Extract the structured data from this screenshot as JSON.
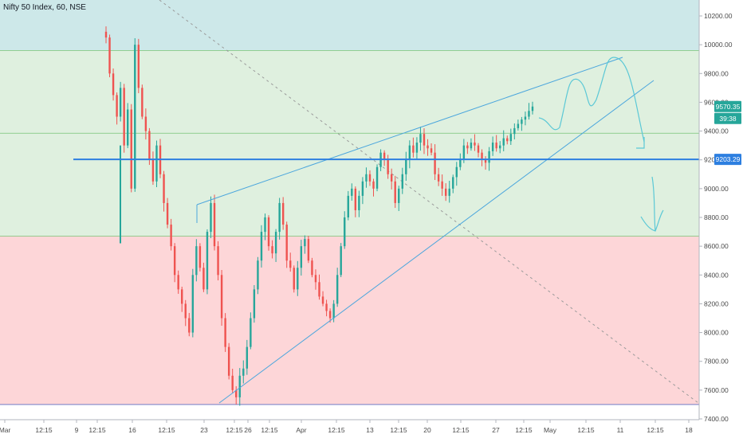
{
  "header": {
    "title": "Nifty 50 Index, 60, NSE"
  },
  "price_tags": {
    "last": "9570.35",
    "countdown": "39:38",
    "level": "9203.29"
  },
  "colors": {
    "zone_top": "#cde8e9",
    "zone_mid": "#dff0df",
    "zone_bottom": "#fdd6d8",
    "candle_up": "#26a69a",
    "candle_down": "#ef5350",
    "trend_line": "#4ba6dd",
    "level_line": "#2d7fe0",
    "target_line": "#2d7fe0",
    "dashed_line": "#9a9a9a",
    "last_tag": "#26a69a"
  },
  "chart_data": {
    "type": "candlestick",
    "yaxis": {
      "ylim": [
        7380,
        10320
      ],
      "ticks": [
        "7400.00",
        "7600.00",
        "7800.00",
        "8000.00",
        "8200.00",
        "8400.00",
        "8600.00",
        "8800.00",
        "9000.00",
        "9200.00",
        "9400.00",
        "9600.00",
        "9800.00",
        "10000.00",
        "10200.00"
      ]
    },
    "xaxis": {
      "ticks": [
        "Mar",
        "12:15",
        "9",
        "12:15",
        "16",
        "12:15",
        "23",
        "12:15",
        "26",
        "12:15",
        "Apr",
        "12:15",
        "13",
        "12:15",
        "20",
        "12:15",
        "27",
        "12:15",
        "May",
        "12:15",
        "11",
        "12:15",
        "18"
      ]
    },
    "zones": [
      {
        "name": "upper",
        "from": 9960,
        "to": 10320,
        "color": "#cde8e9"
      },
      {
        "name": "middle",
        "from": 8670,
        "to": 9960,
        "color": "#dff0df"
      },
      {
        "name": "lower",
        "from": 7500,
        "to": 8670,
        "color": "#fdd6d8"
      }
    ],
    "horizontal_levels": [
      9960,
      9385,
      8670,
      9203.29
    ],
    "support_price": 7500,
    "last_price": 9570.35,
    "close_path": [
      10050,
      9800,
      9650,
      9500,
      9700,
      9300,
      9550,
      9000,
      10000,
      9700,
      9500,
      9400,
      9200,
      9050,
      9300,
      9100,
      8900,
      8750,
      8600,
      8400,
      8300,
      8200,
      8100,
      8000,
      8400,
      8600,
      8450,
      8300,
      8700,
      8900,
      8600,
      8400,
      8100,
      7900,
      7700,
      7600,
      7550,
      7700,
      7750,
      7900,
      8100,
      8300,
      8500,
      8700,
      8800,
      8600,
      8550,
      8700,
      8900,
      8750,
      8500,
      8450,
      8300,
      8450,
      8600,
      8650,
      8500,
      8400,
      8350,
      8250,
      8200,
      8150,
      8100,
      8200,
      8400,
      8600,
      8800,
      8950,
      9000,
      8850,
      8950,
      9050,
      9100,
      9050,
      9000,
      9150,
      9250,
      9200,
      9100,
      9050,
      8900,
      9000,
      9100,
      9200,
      9300,
      9250,
      9320,
      9380,
      9300,
      9280,
      9250,
      9100,
      9050,
      9000,
      8950,
      9000,
      9080,
      9150,
      9200,
      9300,
      9280,
      9320,
      9300,
      9250,
      9200,
      9180,
      9260,
      9320,
      9280,
      9300,
      9350,
      9330,
      9380,
      9420,
      9450,
      9480,
      9500,
      9540,
      9570.35
    ],
    "close_path_x_range": [
      "Mar 11",
      "Apr 30"
    ]
  }
}
